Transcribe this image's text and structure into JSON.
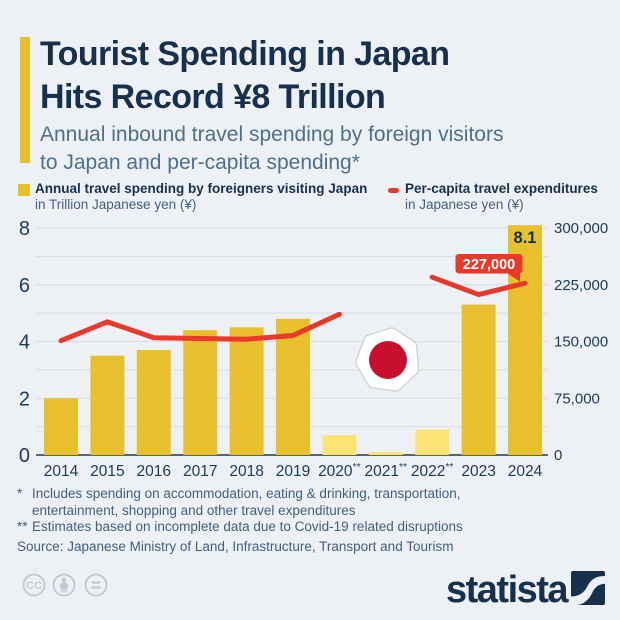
{
  "header": {
    "title_lines": [
      "Tourist Spending in Japan",
      "Hits Record ¥8 Trillion"
    ],
    "subtitle_lines": [
      "Annual inbound travel spending by foreign visitors",
      "to Japan and per-capita spending*"
    ]
  },
  "legend": {
    "bars": {
      "label": "Annual travel spending by foreigners visiting Japan",
      "sublabel": "in Trillion Japanese yen (¥)"
    },
    "line": {
      "label": "Per-capita travel expenditures",
      "sublabel": "in Japanese yen (¥)"
    }
  },
  "chart_data": {
    "type": "combo bar+line",
    "categories": [
      "2014",
      "2015",
      "2016",
      "2017",
      "2018",
      "2019",
      "2020**",
      "2021**",
      "2022**",
      "2023",
      "2024"
    ],
    "series": [
      {
        "name": "Annual travel spending by foreigners visiting Japan",
        "type": "bar",
        "axis": "left",
        "unit": "trillion ¥",
        "values": [
          2.0,
          3.5,
          3.7,
          4.4,
          4.5,
          4.8,
          0.7,
          0.1,
          0.9,
          5.3,
          8.1
        ],
        "estimate_flags": [
          false,
          false,
          false,
          false,
          false,
          false,
          true,
          true,
          true,
          false,
          false
        ]
      },
      {
        "name": "Per-capita travel expenditures",
        "type": "line",
        "axis": "right",
        "unit": "¥",
        "values": [
          151000,
          176000,
          155000,
          154000,
          153000,
          158000,
          186000,
          null,
          235000,
          212000,
          227000
        ]
      }
    ],
    "left_axis": {
      "range": [
        0,
        8
      ],
      "tick_step_labeled": 2,
      "gridline_step": 1,
      "tick_labels": [
        "0",
        "2",
        "4",
        "6",
        "8"
      ]
    },
    "right_axis": {
      "range": [
        0,
        300000
      ],
      "tick_labels": [
        "0",
        "75,000",
        "150,000",
        "225,000",
        "300,000"
      ]
    },
    "annotations": {
      "bar_value_label": {
        "category": "2024",
        "text": "8.1"
      },
      "line_badge": {
        "category": "2024",
        "text": "227,000"
      }
    },
    "legend_position": "top",
    "grid": "horizontal",
    "colors": {
      "bar": "#e8c02e",
      "bar_estimate": "#fce473",
      "line": "#e8392b",
      "axis_text": "#1b3a5c",
      "gridline": "#d7dde4",
      "baseline": "#22364e",
      "badge_text": "#ffffff",
      "flag_red": "#c8102e"
    }
  },
  "footnotes": [
    {
      "marker": "*",
      "lines": [
        "Includes spending on accommodation, eating & drinking, transportation,",
        "entertainment, shopping and other travel expenditures"
      ]
    },
    {
      "marker": "**",
      "lines": [
        "Estimates based on incomplete data due to Covid-19 related disruptions"
      ]
    }
  ],
  "source": "Source: Japanese Ministry of Land, Infrastructure, Transport and Tourism",
  "footer": {
    "license_icons": [
      "cc-icon",
      "attribution-icon",
      "equal-icon"
    ],
    "cc_icon_text": "CC",
    "brand": "statista",
    "icon_color": "#c3ccd4"
  }
}
